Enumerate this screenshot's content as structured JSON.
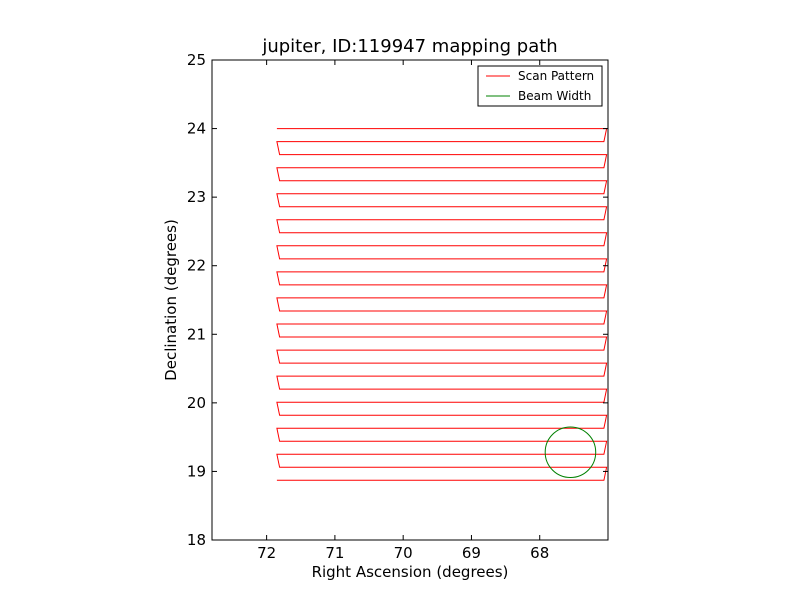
{
  "chart_data": {
    "type": "line",
    "title": "jupiter, ID:119947 mapping path",
    "xlabel": "Right Ascension (degrees)",
    "ylabel": "Declination (degrees)",
    "xlim": [
      72.8,
      67.0
    ],
    "ylim": [
      18,
      25
    ],
    "x_inverted": true,
    "xticks": [
      72,
      71,
      70,
      69,
      68
    ],
    "yticks": [
      18,
      19,
      20,
      21,
      22,
      23,
      24,
      25
    ],
    "grid": false,
    "legend_position": "top-right",
    "series": [
      {
        "name": "Scan Pattern",
        "color": "#ff0000",
        "type": "raster-scan",
        "ra_start": 71.85,
        "ra_end": 67.02,
        "dec_start": 24.0,
        "dec_end": 18.85,
        "row_spacing": 0.19,
        "rows": 28
      },
      {
        "name": "Beam Width",
        "color": "#008000",
        "type": "circle",
        "center_ra": 67.55,
        "center_dec": 19.28,
        "radius_deg": 0.37
      }
    ]
  }
}
